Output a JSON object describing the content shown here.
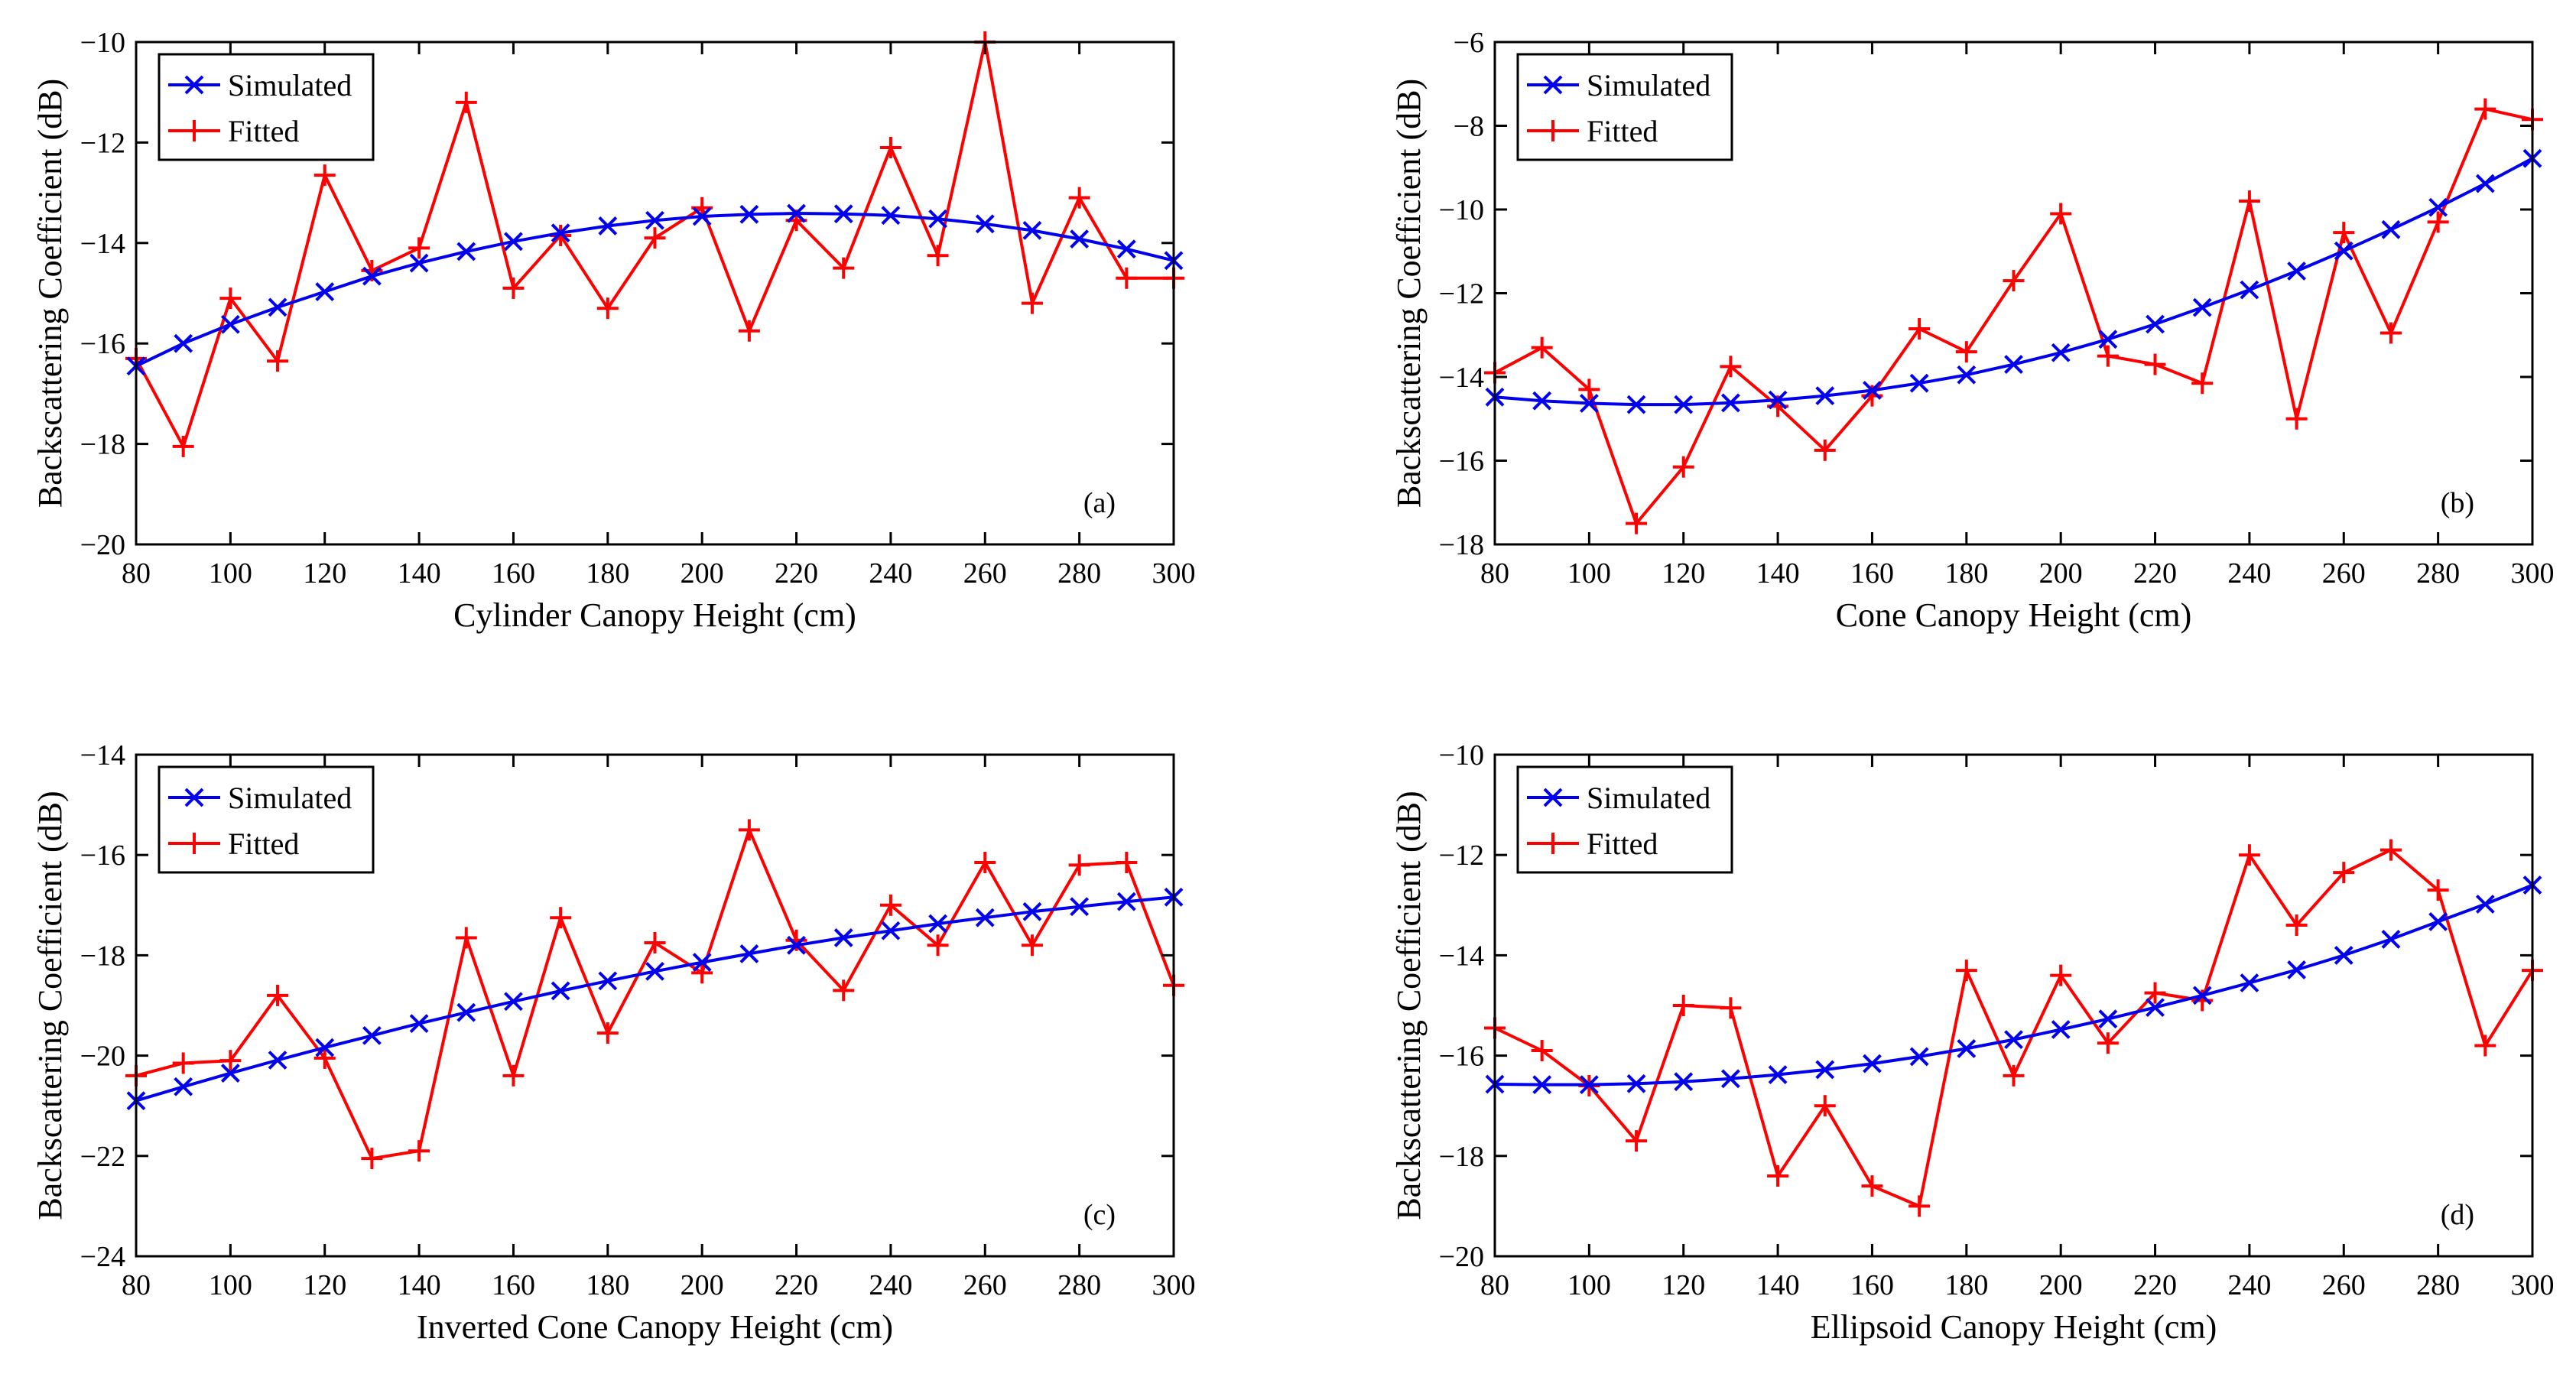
{
  "colors": {
    "simulated": "#0000ee",
    "fitted": "#ff0000",
    "axis": "#000000"
  },
  "chart_data": [
    {
      "type": "line",
      "panel": "(a)",
      "xlabel": "Cylinder Canopy Height (cm)",
      "ylabel": "Backscattering Coefficient (dB)",
      "xlim": [
        80,
        300
      ],
      "ylim": [
        -20,
        -10
      ],
      "xticks": [
        80,
        100,
        120,
        140,
        160,
        180,
        200,
        220,
        240,
        260,
        280,
        300
      ],
      "yticks": [
        -20,
        -18,
        -16,
        -14,
        -12,
        -10
      ],
      "legend": "top-left",
      "x": [
        80,
        90,
        100,
        110,
        120,
        130,
        140,
        150,
        160,
        170,
        180,
        190,
        200,
        210,
        220,
        230,
        240,
        250,
        260,
        270,
        280,
        290,
        300
      ],
      "series": [
        {
          "name": "Simulated",
          "marker": "x",
          "color": "#0000ee",
          "values": [
            -16.45,
            -16.0,
            -15.62,
            -15.28,
            -14.97,
            -14.66,
            -14.4,
            -14.17,
            -13.97,
            -13.8,
            -13.66,
            -13.55,
            -13.47,
            -13.43,
            -13.41,
            -13.42,
            -13.45,
            -13.52,
            -13.62,
            -13.75,
            -13.92,
            -14.12,
            -14.35
          ]
        },
        {
          "name": "Fitted",
          "marker": "+",
          "color": "#ff0000",
          "values": [
            -16.3,
            -18.05,
            -15.1,
            -16.35,
            -12.65,
            -14.55,
            -14.1,
            -11.2,
            -14.9,
            -13.85,
            -15.3,
            -13.9,
            -13.3,
            -15.75,
            -13.55,
            -14.5,
            -12.1,
            -14.25,
            -10.0,
            -15.2,
            -13.1,
            -14.7,
            -14.7
          ]
        }
      ]
    },
    {
      "type": "line",
      "panel": "(b)",
      "xlabel": "Cone Canopy Height (cm)",
      "ylabel": "Backscattering Coefficient (dB)",
      "xlim": [
        80,
        300
      ],
      "ylim": [
        -18,
        -6
      ],
      "xticks": [
        80,
        100,
        120,
        140,
        160,
        180,
        200,
        220,
        240,
        260,
        280,
        300
      ],
      "yticks": [
        -18,
        -16,
        -14,
        -12,
        -10,
        -8,
        -6
      ],
      "legend": "top-left",
      "x": [
        80,
        90,
        100,
        110,
        120,
        130,
        140,
        150,
        160,
        170,
        180,
        190,
        200,
        210,
        220,
        230,
        240,
        250,
        260,
        270,
        280,
        290,
        300
      ],
      "series": [
        {
          "name": "Simulated",
          "marker": "x",
          "color": "#0000ee",
          "values": [
            -14.48,
            -14.57,
            -14.63,
            -14.66,
            -14.66,
            -14.62,
            -14.55,
            -14.45,
            -14.32,
            -14.15,
            -13.95,
            -13.7,
            -13.42,
            -13.1,
            -12.74,
            -12.34,
            -11.92,
            -11.47,
            -10.99,
            -10.48,
            -9.95,
            -9.38,
            -8.78
          ]
        },
        {
          "name": "Fitted",
          "marker": "+",
          "color": "#ff0000",
          "values": [
            -13.9,
            -13.3,
            -14.3,
            -17.5,
            -16.15,
            -13.75,
            -14.7,
            -15.75,
            -14.45,
            -12.85,
            -13.4,
            -11.7,
            -10.1,
            -13.5,
            -13.7,
            -14.15,
            -9.8,
            -15.0,
            -10.55,
            -12.95,
            -10.3,
            -7.6,
            -7.85
          ]
        }
      ]
    },
    {
      "type": "line",
      "panel": "(c)",
      "xlabel": "Inverted Cone Canopy Height (cm)",
      "ylabel": "Backscattering Coefficient (dB)",
      "xlim": [
        80,
        300
      ],
      "ylim": [
        -24,
        -14
      ],
      "xticks": [
        80,
        100,
        120,
        140,
        160,
        180,
        200,
        220,
        240,
        260,
        280,
        300
      ],
      "yticks": [
        -24,
        -22,
        -20,
        -18,
        -16,
        -14
      ],
      "legend": "top-left",
      "x": [
        80,
        90,
        100,
        110,
        120,
        130,
        140,
        150,
        160,
        170,
        180,
        190,
        200,
        210,
        220,
        230,
        240,
        250,
        260,
        270,
        280,
        290,
        300
      ],
      "series": [
        {
          "name": "Simulated",
          "marker": "x",
          "color": "#0000ee",
          "values": [
            -20.9,
            -20.62,
            -20.35,
            -20.09,
            -19.84,
            -19.6,
            -19.36,
            -19.14,
            -18.92,
            -18.71,
            -18.51,
            -18.32,
            -18.14,
            -17.97,
            -17.8,
            -17.65,
            -17.51,
            -17.37,
            -17.25,
            -17.13,
            -17.03,
            -16.93,
            -16.84
          ]
        },
        {
          "name": "Fitted",
          "marker": "+",
          "color": "#ff0000",
          "values": [
            -20.4,
            -20.15,
            -20.1,
            -18.8,
            -20.05,
            -22.05,
            -21.9,
            -17.65,
            -20.4,
            -17.25,
            -19.55,
            -17.75,
            -18.35,
            -15.5,
            -17.7,
            -18.7,
            -17.0,
            -17.8,
            -16.15,
            -17.8,
            -16.2,
            -16.15,
            -18.6
          ]
        }
      ]
    },
    {
      "type": "line",
      "panel": "(d)",
      "xlabel": "Ellipsoid Canopy Height (cm)",
      "ylabel": "Backscattering Coefficient (dB)",
      "xlim": [
        80,
        300
      ],
      "ylim": [
        -20,
        -10
      ],
      "xticks": [
        80,
        100,
        120,
        140,
        160,
        180,
        200,
        220,
        240,
        260,
        280,
        300
      ],
      "yticks": [
        -20,
        -18,
        -16,
        -14,
        -12,
        -10
      ],
      "legend": "top-left",
      "x": [
        80,
        90,
        100,
        110,
        120,
        130,
        140,
        150,
        160,
        170,
        180,
        190,
        200,
        210,
        220,
        230,
        240,
        250,
        260,
        270,
        280,
        290,
        300
      ],
      "series": [
        {
          "name": "Simulated",
          "marker": "x",
          "color": "#0000ee",
          "values": [
            -16.57,
            -16.58,
            -16.58,
            -16.56,
            -16.52,
            -16.46,
            -16.38,
            -16.28,
            -16.16,
            -16.02,
            -15.86,
            -15.68,
            -15.48,
            -15.27,
            -15.04,
            -14.8,
            -14.55,
            -14.29,
            -14.0,
            -13.68,
            -13.33,
            -12.98,
            -12.6
          ]
        },
        {
          "name": "Fitted",
          "marker": "+",
          "color": "#ff0000",
          "values": [
            -15.45,
            -15.9,
            -16.6,
            -17.7,
            -15.0,
            -15.05,
            -18.4,
            -17.0,
            -18.6,
            -19.0,
            -14.3,
            -16.4,
            -14.4,
            -15.75,
            -14.75,
            -14.9,
            -12.0,
            -13.4,
            -12.35,
            -11.9,
            -12.7,
            -15.8,
            -14.3
          ]
        }
      ]
    }
  ]
}
